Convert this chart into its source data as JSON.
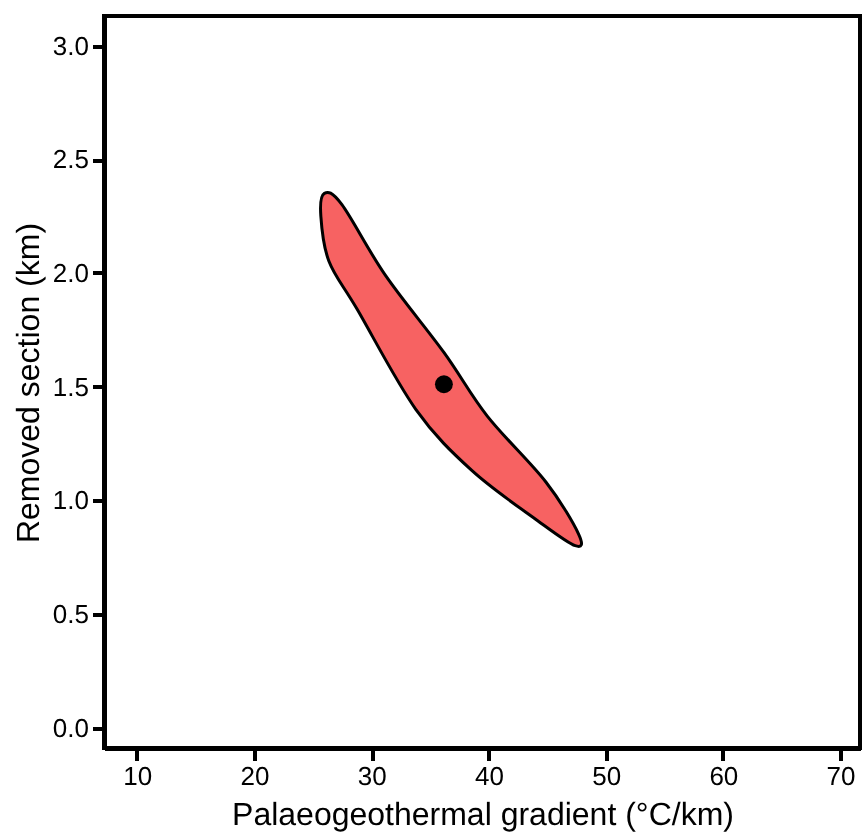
{
  "chart_data": {
    "type": "scatter",
    "xlabel": "Palaeogeothermal gradient (°C/km)",
    "ylabel": "Removed section (km)",
    "xlim": [
      7.2,
      71.7
    ],
    "xticks": [
      10,
      20,
      30,
      40,
      50,
      60,
      70
    ],
    "ylim": [
      -0.09,
      3.13
    ],
    "yticks": [
      {
        "value": 0,
        "label": "0.0"
      },
      0.5,
      {
        "value": 1,
        "label": "1.0"
      },
      1.5,
      {
        "value": 2,
        "label": "2.0"
      },
      2.5,
      {
        "value": 3,
        "label": "3.0"
      }
    ],
    "grid": false,
    "series": [
      {
        "type": "area",
        "color": "#f76262",
        "x": [
          26,
          27.5,
          31.2,
          36.2,
          39.9,
          44.9,
          47.7,
          47.4,
          44.2,
          38.6,
          33.8,
          28.8,
          26.4,
          25.7
        ],
        "values": [
          2.35,
          2.3,
          1.99,
          1.65,
          1.37,
          1.08,
          0.85,
          0.8,
          0.91,
          1.13,
          1.4,
          1.84,
          2.05,
          2.25
        ]
      },
      {
        "color": "#000000",
        "marker": "circle",
        "x": [
          36.2
        ],
        "values": [
          1.51
        ]
      }
    ]
  }
}
